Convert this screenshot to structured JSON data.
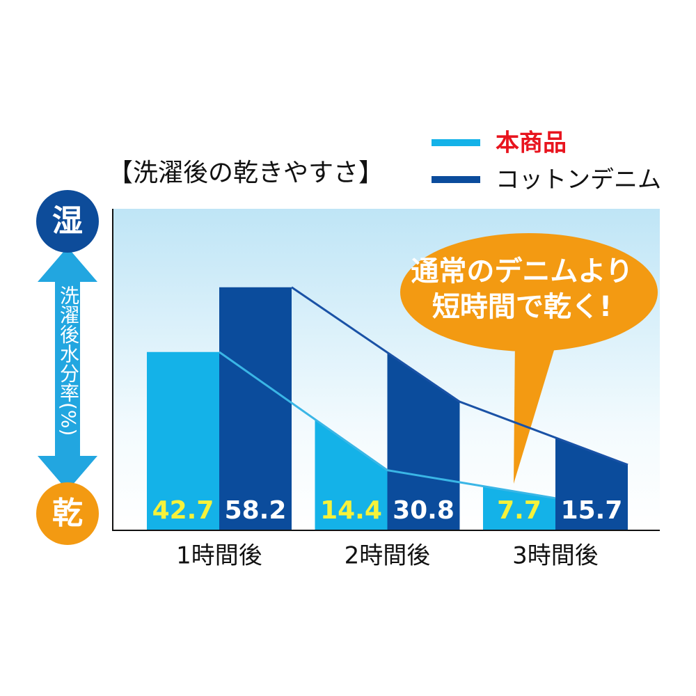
{
  "chart_data": {
    "type": "bar",
    "title": "【洗濯後の乾きやすさ】",
    "y_label": "洗濯後水分率(%)",
    "y_top_label": "湿",
    "y_bottom_label": "乾",
    "annotation": [
      "通常のデニムより",
      "短時間で乾く!"
    ],
    "categories": [
      "1時間後",
      "2時間後",
      "3時間後"
    ],
    "series": [
      {
        "name": "本商品",
        "color": "#14b2e8",
        "line_color": "#3ab6e6",
        "label_color": "#f6f23a",
        "values": [
          42.7,
          14.4,
          7.7
        ]
      },
      {
        "name": "コットンデニム",
        "color": "#0b4c9c",
        "line_color": "#1a52a6",
        "label_color": "#ffffff",
        "values": [
          58.2,
          30.8,
          15.7
        ]
      }
    ],
    "ylim": [
      0,
      77
    ]
  }
}
